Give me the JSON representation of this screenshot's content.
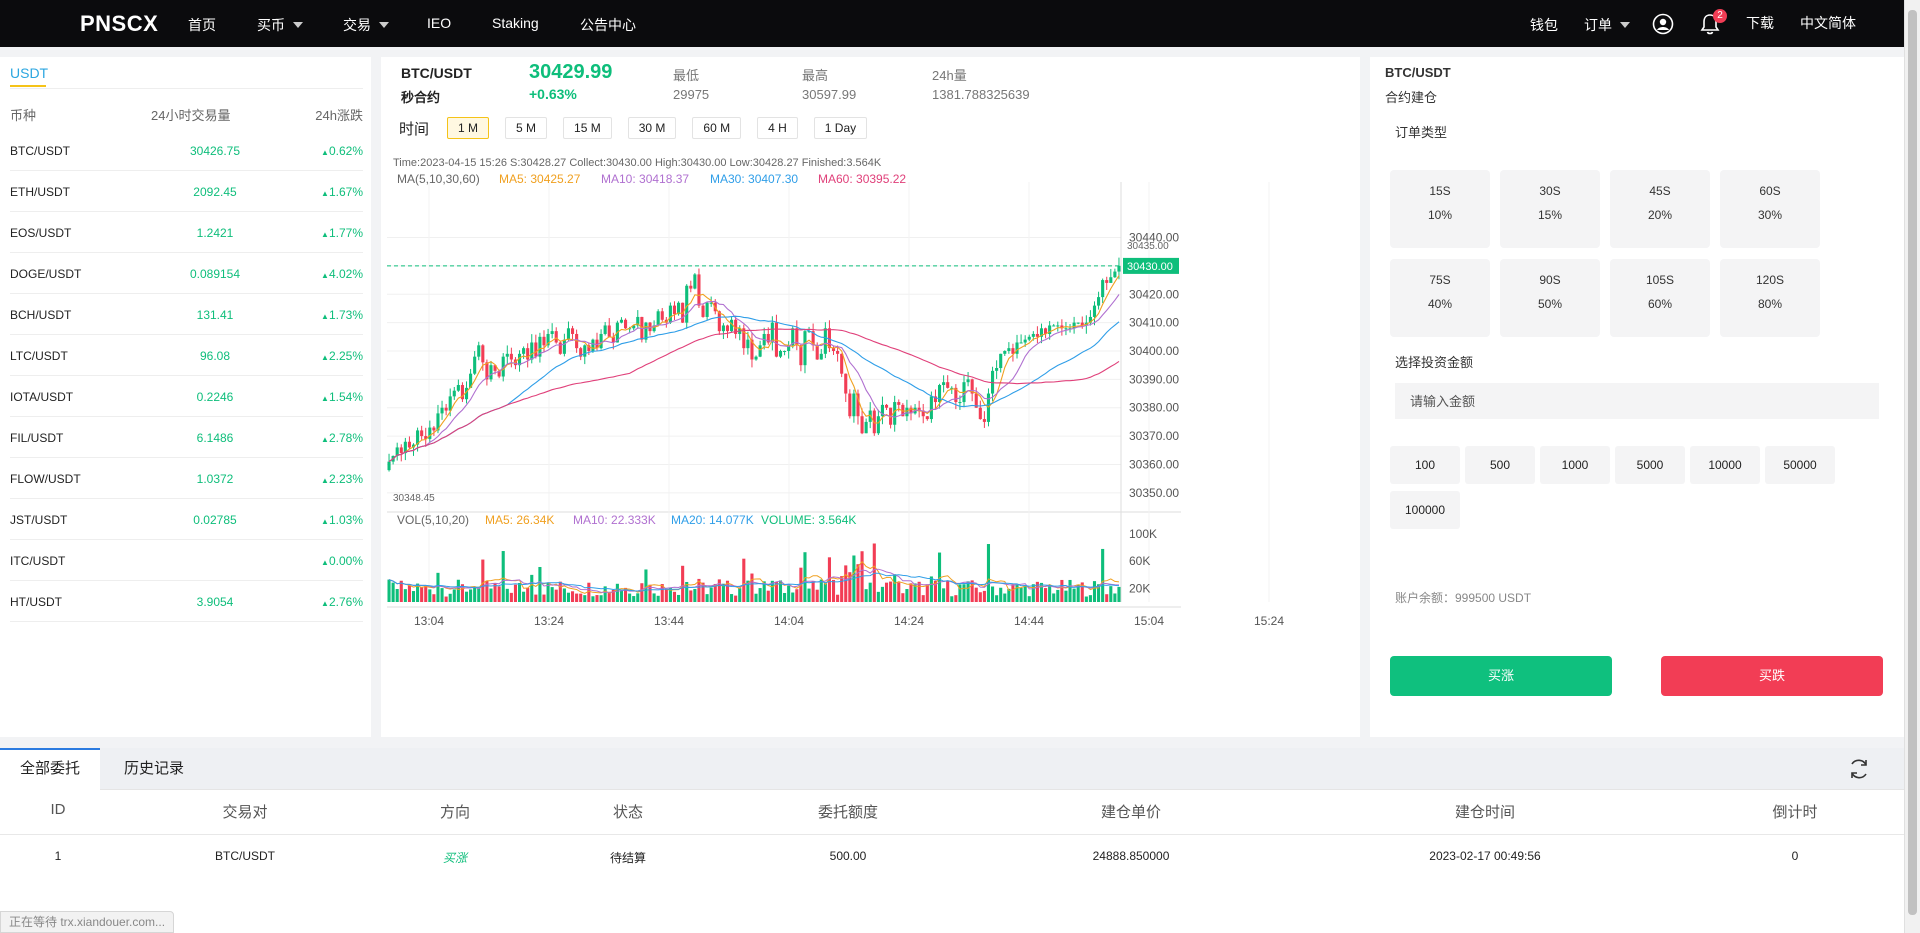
{
  "nav": {
    "logo": "PNSCX",
    "items": [
      "首页",
      "买币",
      "交易",
      "IEO",
      "Staking",
      "公告中心"
    ],
    "right": {
      "wallet": "钱包",
      "orders": "订单",
      "notifications": "2",
      "download": "下载",
      "language": "中文简体"
    }
  },
  "market": {
    "tab": "USDT",
    "headers": {
      "coin": "币种",
      "volume": "24小时交易量",
      "change": "24h涨跌"
    },
    "rows": [
      {
        "name": "BTC/USDT",
        "vol": "30426.75",
        "chg": "0.62%"
      },
      {
        "name": "ETH/USDT",
        "vol": "2092.45",
        "chg": "1.67%"
      },
      {
        "name": "EOS/USDT",
        "vol": "1.2421",
        "chg": "1.77%"
      },
      {
        "name": "DOGE/USDT",
        "vol": "0.089154",
        "chg": "4.02%"
      },
      {
        "name": "BCH/USDT",
        "vol": "131.41",
        "chg": "1.73%"
      },
      {
        "name": "LTC/USDT",
        "vol": "96.08",
        "chg": "2.25%"
      },
      {
        "name": "IOTA/USDT",
        "vol": "0.2246",
        "chg": "1.54%"
      },
      {
        "name": "FIL/USDT",
        "vol": "6.1486",
        "chg": "2.78%"
      },
      {
        "name": "FLOW/USDT",
        "vol": "1.0372",
        "chg": "2.23%"
      },
      {
        "name": "JST/USDT",
        "vol": "0.02785",
        "chg": "1.03%"
      },
      {
        "name": "ITC/USDT",
        "vol": "",
        "chg": "0.00%"
      },
      {
        "name": "HT/USDT",
        "vol": "3.9054",
        "chg": "2.76%"
      }
    ],
    "up_color": "#0ebe7b"
  },
  "ticker": {
    "pair": "BTC/USDT",
    "sub": "秒合约",
    "price": "30429.99",
    "change": "+0.63%",
    "low_label": "最低",
    "low": "29975",
    "high_label": "最高",
    "high": "30597.99",
    "vol_label": "24h量",
    "vol": "1381.788325639"
  },
  "timeframes": {
    "label": "时间",
    "items": [
      "1 M",
      "5 M",
      "15 M",
      "30 M",
      "60 M",
      "4 H",
      "1 Day"
    ],
    "active": "1 M"
  },
  "chart_data": {
    "type": "candlestick",
    "info_line": "Time:2023-04-15 15:26   S:30428.27    Collect:30430.00    High:30430.00    Low:30428.27   Finished:3.564K",
    "ma_label": "MA(5,10,30,60)",
    "ma": [
      {
        "name": "MA5",
        "value": "30425.27",
        "color": "#f0a020"
      },
      {
        "name": "MA10",
        "value": "30418.37",
        "color": "#b070d0"
      },
      {
        "name": "MA30",
        "value": "30407.30",
        "color": "#2f9ee8"
      },
      {
        "name": "MA60",
        "value": "30395.22",
        "color": "#e0407a"
      }
    ],
    "y_ticks": [
      "30440.00",
      "30430.00",
      "30420.00",
      "30410.00",
      "30400.00",
      "30390.00",
      "30380.00",
      "30370.00",
      "30360.00",
      "30350.00"
    ],
    "ylim": [
      30345,
      30449
    ],
    "current_price": "30430.00",
    "max_label": "30435.00",
    "min_label": "30348.45",
    "x_ticks": [
      "13:04",
      "13:24",
      "13:44",
      "14:04",
      "14:24",
      "14:44",
      "15:04",
      "15:24"
    ],
    "closes": [
      30361,
      30363,
      30366,
      30364,
      30368,
      30366,
      30367,
      30372,
      30370,
      30369,
      30373,
      30372,
      30378,
      30380,
      30379,
      30384,
      30386,
      30388,
      30383,
      30387,
      30392,
      30398,
      30402,
      30396,
      30390,
      30395,
      30393,
      30391,
      30398,
      30399,
      30397,
      30395,
      30399,
      30401,
      30397,
      30403,
      30398,
      30405,
      30402,
      30406,
      30407,
      30403,
      30399,
      30404,
      30408,
      30406,
      30401,
      30398,
      30402,
      30400,
      30404,
      30401,
      30406,
      30409,
      30405,
      30403,
      30410,
      30411,
      30408,
      30408,
      30409,
      30412,
      30404,
      30410,
      30407,
      30409,
      30414,
      30411,
      30410,
      30416,
      30413,
      30417,
      30410,
      30423,
      30422,
      30427,
      30416,
      30412,
      30417,
      30417,
      30414,
      30407,
      30409,
      30407,
      30411,
      30406,
      30408,
      30401,
      30404,
      30397,
      30398,
      30402,
      30406,
      30403,
      30410,
      30398,
      30400,
      30400,
      30402,
      30408,
      30402,
      30395,
      30407,
      30407,
      30402,
      30397,
      30399,
      30408,
      30401,
      30400,
      30399,
      30392,
      30385,
      30377,
      30385,
      30377,
      30371,
      30375,
      30379,
      30371,
      30377,
      30381,
      30380,
      30374,
      30382,
      30381,
      30377,
      30380,
      30378,
      30380,
      30379,
      30377,
      30376,
      30384,
      30382,
      30388,
      30389,
      30387,
      30387,
      30382,
      30382,
      30389,
      30390,
      30385,
      30380,
      30376,
      30375,
      30385,
      30393,
      30394,
      30399,
      30400,
      30401,
      30399,
      30403,
      30403,
      30404,
      30405,
      30406,
      30405,
      30408,
      30406,
      30409,
      30409,
      30409,
      30408,
      30408,
      30408,
      30410,
      30410,
      30409,
      30410,
      30412,
      30416,
      30419,
      30425,
      30424,
      30426,
      30428,
      30430
    ],
    "volume_label": "VOL(5,10,20)",
    "volume_ma": [
      {
        "name": "MA5",
        "value": "26.34K",
        "color": "#f0a020"
      },
      {
        "name": "MA10",
        "value": "22.333K",
        "color": "#b070d0"
      },
      {
        "name": "MA20",
        "value": "14.077K",
        "color": "#2f9ee8"
      },
      {
        "name": "VOLUME",
        "value": "3.564K",
        "color": "#0ebe7b"
      }
    ],
    "vol_ticks": [
      "100K",
      "60K",
      "20K"
    ],
    "vol_ylim": [
      0,
      110
    ]
  },
  "order_panel": {
    "title": "BTC/USDT",
    "subtitle": "合约建仓",
    "type_label": "订单类型",
    "periods": [
      {
        "time": "15S",
        "rate": "10%"
      },
      {
        "time": "30S",
        "rate": "15%"
      },
      {
        "time": "45S",
        "rate": "20%"
      },
      {
        "time": "60S",
        "rate": "30%"
      },
      {
        "time": "75S",
        "rate": "40%"
      },
      {
        "time": "90S",
        "rate": "50%"
      },
      {
        "time": "105S",
        "rate": "60%"
      },
      {
        "time": "120S",
        "rate": "80%"
      }
    ],
    "amount_label": "选择投资金额",
    "amount_placeholder": "请输入金额",
    "amounts": [
      "100",
      "500",
      "1000",
      "5000",
      "10000",
      "50000",
      "100000"
    ],
    "balance": "账户余额：999500 USDT",
    "buy": "买涨",
    "sell": "买跌",
    "buy_color": "#0fc07e",
    "sell_color": "#f23d55"
  },
  "orders": {
    "tabs": [
      "全部委托",
      "历史记录"
    ],
    "headers": [
      "ID",
      "交易对",
      "方向",
      "状态",
      "委托额度",
      "建仓单价",
      "建仓时间",
      "倒计时"
    ],
    "rows": [
      [
        "1",
        "BTC/USDT",
        "买涨",
        "待结算",
        "500.00",
        "24888.850000",
        "2023-02-17 00:49:56",
        "0"
      ]
    ]
  },
  "statusbar": "正在等待 trx.xiandouer.com..."
}
